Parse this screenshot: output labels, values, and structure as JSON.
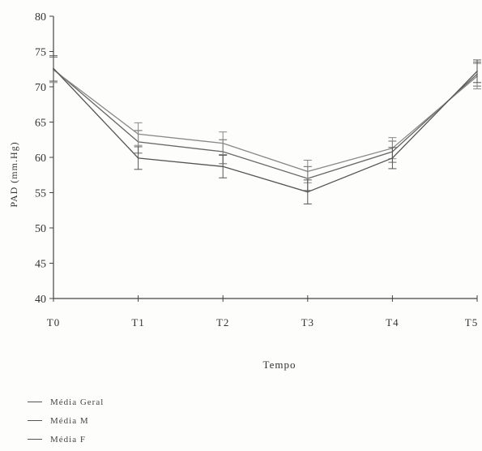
{
  "chart_data": {
    "type": "line",
    "title": "",
    "xlabel": "Tempo",
    "ylabel": "PAD (mm.Hg)",
    "categories": [
      "T0",
      "T1",
      "T2",
      "T3",
      "T4",
      "T5"
    ],
    "ylim": [
      40,
      80
    ],
    "yticks": [
      40,
      45,
      50,
      55,
      60,
      65,
      70,
      75,
      80
    ],
    "grid": false,
    "legend_position": "bottom-left",
    "series": [
      {
        "name": "Média Geral",
        "values": [
          72.5,
          62.2,
          60.8,
          57.0,
          60.8,
          71.8
        ],
        "error": [
          1.7,
          1.6,
          1.7,
          1.7,
          1.5,
          1.7
        ],
        "color": "#666666"
      },
      {
        "name": "Média M",
        "values": [
          72.4,
          63.3,
          62.0,
          58.0,
          61.3,
          71.5
        ],
        "error": [
          1.8,
          1.6,
          1.6,
          1.6,
          1.5,
          1.8
        ],
        "color": "#888888"
      },
      {
        "name": "Média F",
        "values": [
          72.6,
          59.9,
          58.7,
          55.1,
          59.9,
          72.2
        ],
        "error": [
          1.8,
          1.6,
          1.6,
          1.7,
          1.5,
          1.6
        ],
        "color": "#555555"
      }
    ]
  },
  "legend": {
    "items": [
      "Média Geral",
      "Média M",
      "Média F"
    ]
  }
}
